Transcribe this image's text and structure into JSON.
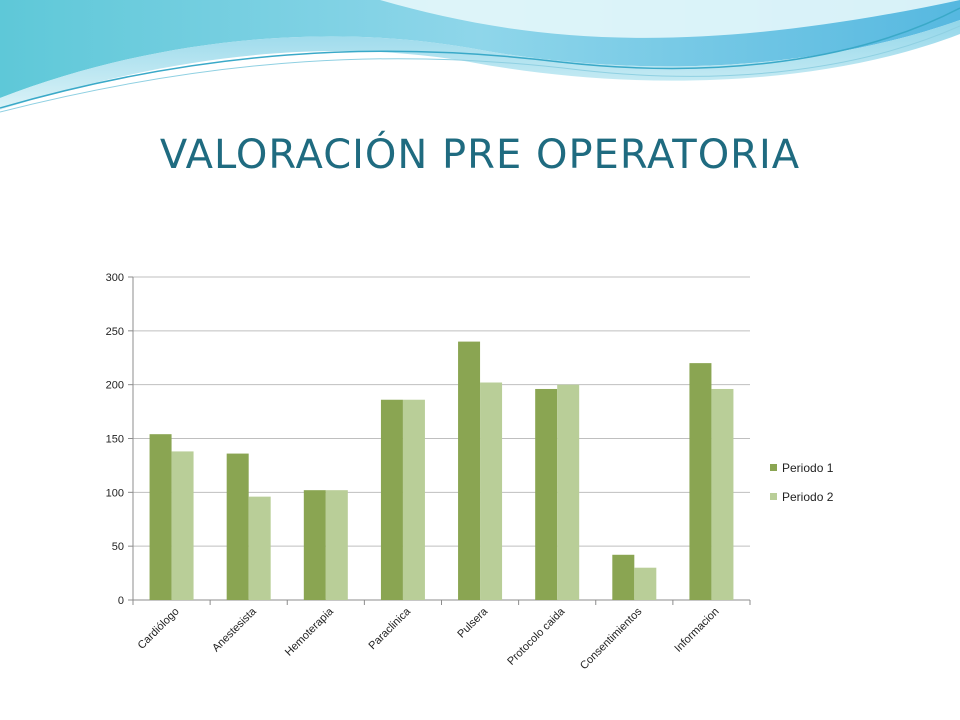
{
  "slide": {
    "title": "VALORACIÓN PRE OPERATORIA"
  },
  "chart_data": {
    "type": "bar",
    "categories": [
      "Cardiólogo",
      "Anestesista",
      "Hemoterapia",
      "Paraclinica",
      "Pulsera",
      "Protocolo caida",
      "Consentimientos",
      "Informacion"
    ],
    "series": [
      {
        "name": "Periodo 1",
        "values": [
          154,
          136,
          102,
          186,
          240,
          196,
          42,
          220
        ],
        "color": "#8aa552"
      },
      {
        "name": "Periodo 2",
        "values": [
          138,
          96,
          102,
          186,
          202,
          200,
          30,
          196
        ],
        "color": "#b9ce98"
      }
    ],
    "ylim": [
      0,
      300
    ],
    "yticks": [
      0,
      50,
      100,
      150,
      200,
      250,
      300
    ],
    "grid": true,
    "legend": "right",
    "xlabel": "",
    "ylabel": ""
  },
  "colors": {
    "title": "#1f6b80",
    "gridline": "#bfbfbf",
    "axis": "#8c8c8c"
  }
}
